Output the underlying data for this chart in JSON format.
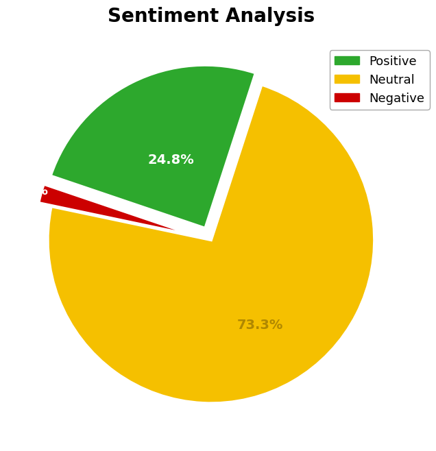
{
  "title": "Sentiment Analysis",
  "labels": [
    "Neutral",
    "Negative",
    "Positive"
  ],
  "values": [
    73.3,
    1.9,
    24.8
  ],
  "colors": [
    "#f5c000",
    "#cc0000",
    "#2da82d"
  ],
  "explode": [
    0.0,
    0.08,
    0.08
  ],
  "pct_colors": [
    "#b08800",
    "white",
    "white"
  ],
  "pct_distances": [
    0.65,
    0.82,
    0.55
  ],
  "startangle": 72,
  "title_fontsize": 20,
  "label_fontsize": 14,
  "legend_fontsize": 13,
  "legend_labels": [
    "Positive",
    "Neutral",
    "Negative"
  ],
  "legend_colors": [
    "#2da82d",
    "#f5c000",
    "#cc0000"
  ],
  "background_color": "#ffffff",
  "edgecolor": "white",
  "edgewidth": 3
}
